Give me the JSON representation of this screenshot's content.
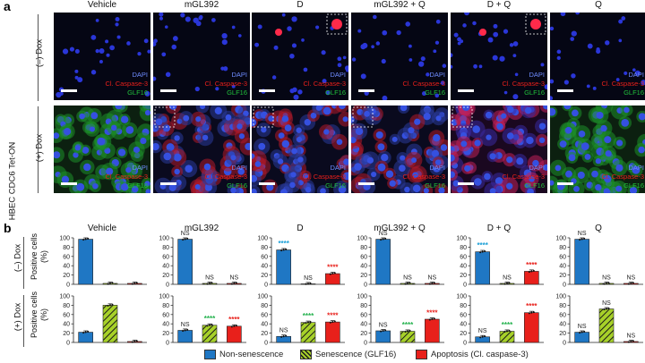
{
  "figure": {
    "panel_a": "a",
    "panel_b": "b",
    "conditions": [
      "Vehicle",
      "mGL392",
      "D",
      "mGL392 + Q",
      "D + Q",
      "Q"
    ],
    "row_labels": [
      "(–) Dox",
      "(+) Dox"
    ],
    "cell_line": "HBEC CDC6 Tet-ON",
    "stain_labels": [
      "DAPI",
      "Cl. Caspase-3",
      "GLF16"
    ],
    "ylabel": [
      "Positive cells",
      "(%)"
    ],
    "colors": {
      "non_senescence": "#1f77c4",
      "senescence_green": "#a7d129",
      "apoptosis": "#e8201b",
      "sig_blue": "#1a9fd6",
      "sig_green": "#22b14c",
      "sig_red": "#e8201b"
    }
  },
  "legend": {
    "items": [
      {
        "label": "Non-senescence",
        "color": "#1f77c4",
        "pattern": "solid"
      },
      {
        "label": "Senescence (GLF16)",
        "color": "#a7d129",
        "pattern": "hatched"
      },
      {
        "label": "Apoptosis (Cl. caspase-3)",
        "color": "#e8201b",
        "pattern": "solid"
      }
    ]
  },
  "chart_data": [
    {
      "type": "bar",
      "row": "(–) Dox",
      "panel": "Vehicle",
      "categories": [
        "Non-senescence",
        "Senescence (GLF16)",
        "Apoptosis (Cl. caspase-3)"
      ],
      "values": [
        97,
        2,
        2
      ],
      "annotations": [
        "",
        "",
        ""
      ],
      "ylim": [
        0,
        100
      ],
      "yticks": [
        0,
        20,
        40,
        60,
        80,
        100
      ]
    },
    {
      "type": "bar",
      "row": "(–) Dox",
      "panel": "mGL392",
      "categories": [
        "Non-senescence",
        "Senescence (GLF16)",
        "Apoptosis (Cl. caspase-3)"
      ],
      "values": [
        97,
        2,
        2
      ],
      "annotations": [
        "NS",
        "NS",
        "NS"
      ],
      "ylim": [
        0,
        100
      ],
      "yticks": [
        0,
        20,
        40,
        60,
        80,
        100
      ]
    },
    {
      "type": "bar",
      "row": "(–) Dox",
      "panel": "D",
      "categories": [
        "Non-senescence",
        "Senescence (GLF16)",
        "Apoptosis (Cl. caspase-3)"
      ],
      "values": [
        74,
        1,
        23
      ],
      "annotations": [
        "****",
        "NS",
        "****"
      ],
      "ylim": [
        0,
        100
      ],
      "yticks": [
        0,
        20,
        40,
        60,
        80,
        100
      ]
    },
    {
      "type": "bar",
      "row": "(–) Dox",
      "panel": "mGL392 + Q",
      "categories": [
        "Non-senescence",
        "Senescence (GLF16)",
        "Apoptosis (Cl. caspase-3)"
      ],
      "values": [
        97,
        2,
        2
      ],
      "annotations": [
        "NS",
        "NS",
        "NS"
      ],
      "ylim": [
        0,
        100
      ],
      "yticks": [
        0,
        20,
        40,
        60,
        80,
        100
      ]
    },
    {
      "type": "bar",
      "row": "(–) Dox",
      "panel": "D + Q",
      "categories": [
        "Non-senescence",
        "Senescence (GLF16)",
        "Apoptosis (Cl. caspase-3)"
      ],
      "values": [
        70,
        2,
        28
      ],
      "annotations": [
        "****",
        "NS",
        "****"
      ],
      "ylim": [
        0,
        100
      ],
      "yticks": [
        0,
        20,
        40,
        60,
        80,
        100
      ]
    },
    {
      "type": "bar",
      "row": "(–) Dox",
      "panel": "Q",
      "categories": [
        "Non-senescence",
        "Senescence (GLF16)",
        "Apoptosis (Cl. caspase-3)"
      ],
      "values": [
        97,
        2,
        2
      ],
      "annotations": [
        "NS",
        "NS",
        "NS"
      ],
      "ylim": [
        0,
        100
      ],
      "yticks": [
        0,
        20,
        40,
        60,
        80,
        100
      ]
    },
    {
      "type": "bar",
      "row": "(+) Dox",
      "panel": "Vehicle",
      "categories": [
        "Non-senescence",
        "Senescence (GLF16)",
        "Apoptosis (Cl. caspase-3)"
      ],
      "values": [
        22,
        80,
        2
      ],
      "annotations": [
        "",
        "",
        ""
      ],
      "ylim": [
        0,
        100
      ],
      "yticks": [
        0,
        20,
        40,
        60,
        80,
        100
      ]
    },
    {
      "type": "bar",
      "row": "(+) Dox",
      "panel": "mGL392",
      "categories": [
        "Non-senescence",
        "Senescence (GLF16)",
        "Apoptosis (Cl. caspase-3)"
      ],
      "values": [
        26,
        37,
        35
      ],
      "annotations": [
        "NS",
        "****",
        "****"
      ],
      "ylim": [
        0,
        100
      ],
      "yticks": [
        0,
        20,
        40,
        60,
        80,
        100
      ]
    },
    {
      "type": "bar",
      "row": "(+) Dox",
      "panel": "D",
      "categories": [
        "Non-senescence",
        "Senescence (GLF16)",
        "Apoptosis (Cl. caspase-3)"
      ],
      "values": [
        13,
        43,
        44
      ],
      "annotations": [
        "NS",
        "****",
        "****"
      ],
      "ylim": [
        0,
        100
      ],
      "yticks": [
        0,
        20,
        40,
        60,
        80,
        100
      ]
    },
    {
      "type": "bar",
      "row": "(+) Dox",
      "panel": "mGL392 + Q",
      "categories": [
        "Non-senescence",
        "Senescence (GLF16)",
        "Apoptosis (Cl. caspase-3)"
      ],
      "values": [
        25,
        24,
        50
      ],
      "annotations": [
        "NS",
        "****",
        "****"
      ],
      "ylim": [
        0,
        100
      ],
      "yticks": [
        0,
        20,
        40,
        60,
        80,
        100
      ]
    },
    {
      "type": "bar",
      "row": "(+) Dox",
      "panel": "D + Q",
      "categories": [
        "Non-senescence",
        "Senescence (GLF16)",
        "Apoptosis (Cl. caspase-3)"
      ],
      "values": [
        12,
        24,
        64
      ],
      "annotations": [
        "NS",
        "****",
        "****"
      ],
      "ylim": [
        0,
        100
      ],
      "yticks": [
        0,
        20,
        40,
        60,
        80,
        100
      ]
    },
    {
      "type": "bar",
      "row": "(+) Dox",
      "panel": "Q",
      "categories": [
        "Non-senescence",
        "Senescence (GLF16)",
        "Apoptosis (Cl. caspase-3)"
      ],
      "values": [
        22,
        72,
        2
      ],
      "annotations": [
        "NS",
        "NS",
        "NS"
      ],
      "ylim": [
        0,
        100
      ],
      "yticks": [
        0,
        20,
        40,
        60,
        80,
        100
      ]
    }
  ]
}
